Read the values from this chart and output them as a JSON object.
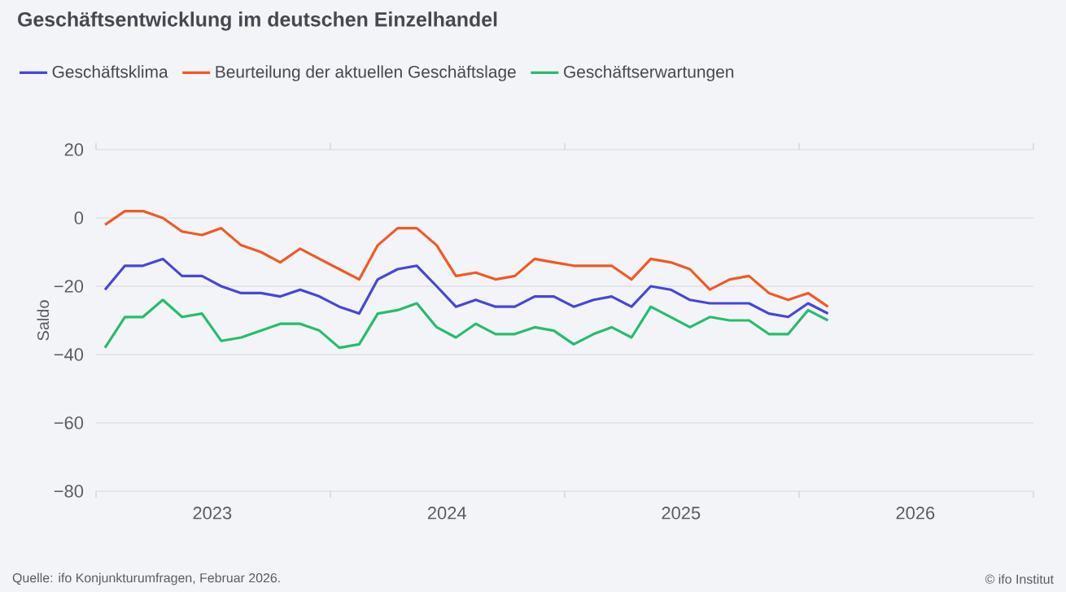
{
  "chart_data": {
    "type": "line",
    "title": "Geschäftsentwicklung im deutschen Einzelhandel",
    "ylabel": "Saldo",
    "x": [
      "2023-01-15",
      "2023-02-15",
      "2023-03-15",
      "2023-04-15",
      "2023-05-15",
      "2023-06-15",
      "2023-07-15",
      "2023-08-15",
      "2023-09-15",
      "2023-10-15",
      "2023-11-15",
      "2023-12-15",
      "2024-01-15",
      "2024-02-15",
      "2024-03-15",
      "2024-04-15",
      "2024-05-15",
      "2024-06-15",
      "2024-07-15",
      "2024-08-15",
      "2024-09-15",
      "2024-10-15",
      "2024-11-15",
      "2024-12-15",
      "2025-01-15",
      "2025-02-15",
      "2025-03-15",
      "2025-04-15",
      "2025-05-15",
      "2025-06-15",
      "2025-07-15",
      "2025-08-15",
      "2025-09-15",
      "2025-10-15",
      "2025-11-15",
      "2025-12-15",
      "2026-01-15",
      "2026-02-15"
    ],
    "series": [
      {
        "name": "Geschäftsklima",
        "color": "#4646dc",
        "values": [
          -21,
          -14,
          -14,
          -12,
          -17,
          -17,
          -20,
          -22,
          -22,
          -23,
          -21,
          -23,
          -26,
          -28,
          -18,
          -15,
          -14,
          -20,
          -26,
          -24,
          -26,
          -26,
          -23,
          -23,
          -26,
          -24,
          -23,
          -26,
          -20,
          -21,
          -24,
          -25,
          -25,
          -25,
          -28,
          -29,
          -25,
          -28
        ]
      },
      {
        "name": "Beurteilung der aktuellen Geschäftslage",
        "color": "#f05a24",
        "values": [
          -2,
          2,
          2,
          0,
          -4,
          -5,
          -3,
          -8,
          -10,
          -13,
          -9,
          -12,
          -15,
          -18,
          -8,
          -3,
          -3,
          -8,
          -17,
          -16,
          -18,
          -17,
          -12,
          -13,
          -14,
          -14,
          -14,
          -18,
          -12,
          -13,
          -15,
          -21,
          -18,
          -17,
          -22,
          -24,
          -22,
          -26
        ]
      },
      {
        "name": "Geschäftserwartungen",
        "color": "#24be6e",
        "values": [
          -38,
          -29,
          -29,
          -24,
          -29,
          -28,
          -36,
          -35,
          -33,
          -31,
          -31,
          -33,
          -38,
          -37,
          -28,
          -27,
          -25,
          -32,
          -35,
          -31,
          -34,
          -34,
          -32,
          -33,
          -37,
          -34,
          -32,
          -35,
          -26,
          -29,
          -32,
          -29,
          -30,
          -30,
          -34,
          -34,
          -27,
          -30
        ]
      }
    ],
    "xlim": [
      "2023-01-01",
      "2027-01-01"
    ],
    "xticks": [
      {
        "value": "2023-01-01",
        "label": null
      },
      {
        "value": "2023-07-01",
        "label": "2023"
      },
      {
        "value": "2024-01-01",
        "label": null
      },
      {
        "value": "2024-07-01",
        "label": "2024"
      },
      {
        "value": "2025-01-01",
        "label": null
      },
      {
        "value": "2025-07-01",
        "label": "2025"
      },
      {
        "value": "2026-01-01",
        "label": null
      },
      {
        "value": "2026-07-01",
        "label": "2026"
      },
      {
        "value": "2027-01-01",
        "label": null
      }
    ],
    "ylim": [
      -80,
      20
    ],
    "yticks": [
      {
        "value": -80,
        "label": "−80"
      },
      {
        "value": -60,
        "label": "−60"
      },
      {
        "value": -40,
        "label": "−40"
      },
      {
        "value": -20,
        "label": "−20"
      },
      0,
      20
    ],
    "grid": "y",
    "legend": "top left",
    "annotations": [
      "Quelle: ifo Konjunkturumfragen,  Februar 2026.",
      "© ifo Institut"
    ]
  }
}
